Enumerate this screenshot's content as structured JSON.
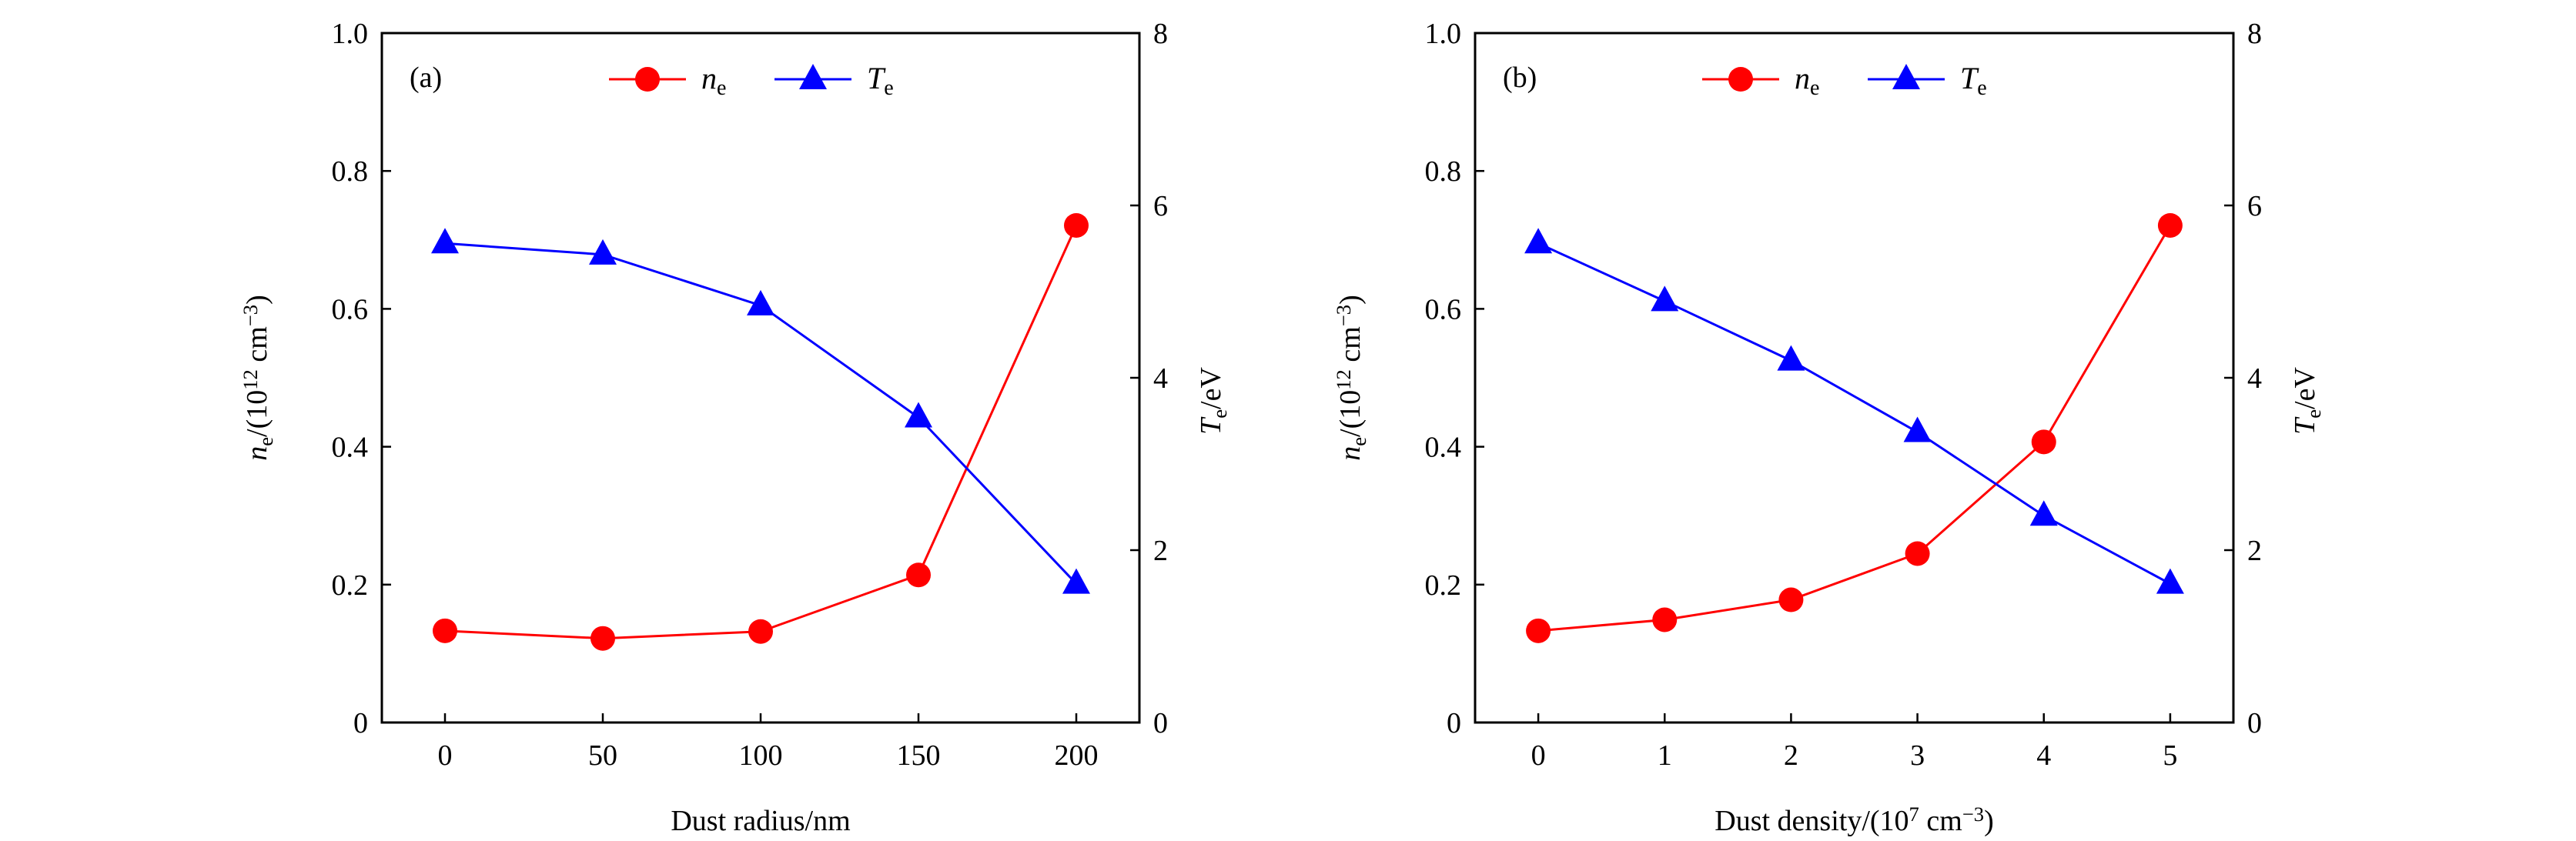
{
  "colors": {
    "ne": "#ff0000",
    "Te": "#0000ff",
    "axis": "#000000"
  },
  "chart_data": [
    {
      "type": "line",
      "panel_label": "(a)",
      "x": [
        0,
        50,
        100,
        150,
        200
      ],
      "xlim": [
        -20,
        220
      ],
      "xticks": [
        0,
        50,
        100,
        150,
        200
      ],
      "xtick_labels": [
        "0",
        "50",
        "100",
        "150",
        "200"
      ],
      "xlabel": [
        {
          "t": "Dust radius/nm"
        }
      ],
      "ylim": [
        0,
        1.0
      ],
      "yticks": [
        0,
        0.2,
        0.4,
        0.6,
        0.8,
        1.0
      ],
      "ytick_labels": [
        "0",
        "0.2",
        "0.4",
        "0.6",
        "0.8",
        "1.0"
      ],
      "ylabel": [
        {
          "t": "n",
          "s": "i"
        },
        {
          "t": "e",
          "s": "sub"
        },
        {
          "t": "/(10"
        },
        {
          "t": "12",
          "s": "sup"
        },
        {
          "t": " cm"
        },
        {
          "t": "−3",
          "s": "sup"
        },
        {
          "t": ")"
        }
      ],
      "y2lim": [
        0,
        8
      ],
      "y2ticks": [
        0,
        2,
        4,
        6,
        8
      ],
      "y2tick_labels": [
        "0",
        "2",
        "4",
        "6",
        "8"
      ],
      "y2label": [
        {
          "t": "T",
          "s": "i"
        },
        {
          "t": "e",
          "s": "sub"
        },
        {
          "t": "/eV"
        }
      ],
      "legend_position": "top-center",
      "series": [
        {
          "name": [
            {
              "t": "n",
              "s": "i"
            },
            {
              "t": "e",
              "s": "sub"
            }
          ],
          "key": "ne",
          "axis": "left",
          "marker": "circle",
          "values": [
            0.133,
            0.122,
            0.132,
            0.214,
            0.721
          ]
        },
        {
          "name": [
            {
              "t": "T",
              "s": "i"
            },
            {
              "t": "e",
              "s": "sub"
            }
          ],
          "key": "Te",
          "axis": "right",
          "marker": "triangle",
          "values": [
            5.56,
            5.43,
            4.84,
            3.54,
            1.61
          ]
        }
      ]
    },
    {
      "type": "line",
      "panel_label": "(b)",
      "x": [
        0,
        1,
        2,
        3,
        4,
        5
      ],
      "xlim": [
        -0.5,
        5.5
      ],
      "xticks": [
        0,
        1,
        2,
        3,
        4,
        5
      ],
      "xtick_labels": [
        "0",
        "1",
        "2",
        "3",
        "4",
        "5"
      ],
      "xlabel": [
        {
          "t": "Dust density/(10"
        },
        {
          "t": "7",
          "s": "sup"
        },
        {
          "t": " cm"
        },
        {
          "t": "−3",
          "s": "sup"
        },
        {
          "t": ")"
        }
      ],
      "ylim": [
        0,
        1.0
      ],
      "yticks": [
        0,
        0.2,
        0.4,
        0.6,
        0.8,
        1.0
      ],
      "ytick_labels": [
        "0",
        "0.2",
        "0.4",
        "0.6",
        "0.8",
        "1.0"
      ],
      "ylabel": [
        {
          "t": "n",
          "s": "i"
        },
        {
          "t": "e",
          "s": "sub"
        },
        {
          "t": "/(10"
        },
        {
          "t": "12",
          "s": "sup"
        },
        {
          "t": " cm"
        },
        {
          "t": "−3",
          "s": "sup"
        },
        {
          "t": ")"
        }
      ],
      "y2lim": [
        0,
        8
      ],
      "y2ticks": [
        0,
        2,
        4,
        6,
        8
      ],
      "y2tick_labels": [
        "0",
        "2",
        "4",
        "6",
        "8"
      ],
      "y2label": [
        {
          "t": "T",
          "s": "i"
        },
        {
          "t": "e",
          "s": "sub"
        },
        {
          "t": "/eV"
        }
      ],
      "legend_position": "top-center",
      "series": [
        {
          "name": [
            {
              "t": "n",
              "s": "i"
            },
            {
              "t": "e",
              "s": "sub"
            }
          ],
          "key": "ne",
          "axis": "left",
          "marker": "circle",
          "values": [
            0.133,
            0.149,
            0.178,
            0.245,
            0.407,
            0.721
          ]
        },
        {
          "name": [
            {
              "t": "T",
              "s": "i"
            },
            {
              "t": "e",
              "s": "sub"
            }
          ],
          "key": "Te",
          "axis": "right",
          "marker": "triangle",
          "values": [
            5.56,
            4.89,
            4.2,
            3.37,
            2.4,
            1.61
          ]
        }
      ]
    }
  ]
}
